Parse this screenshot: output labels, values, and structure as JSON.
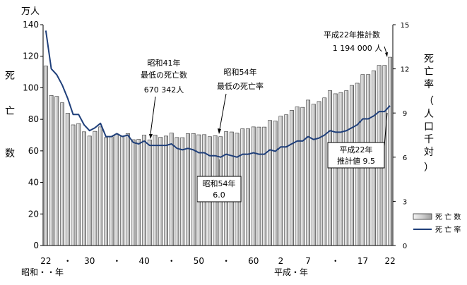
{
  "chart_data": {
    "type": "bar+line",
    "left_axis": {
      "unit": "万人",
      "label": [
        "死",
        "亡",
        "数"
      ],
      "ylim": [
        0,
        140
      ],
      "ticks": [
        "0",
        "20",
        "40",
        "60",
        "80",
        "100",
        "120",
        "140"
      ]
    },
    "right_axis": {
      "label": [
        "死",
        "亡",
        "率",
        "（",
        "人",
        "口",
        "千",
        "対",
        "）"
      ],
      "ylim": [
        0,
        15
      ],
      "ticks": [
        "0",
        "3",
        "6",
        "9",
        "12",
        "15"
      ]
    },
    "x_tick_labels": [
      "22",
      "・",
      "30",
      "・",
      "40",
      "・",
      "50",
      "・",
      "60",
      "2",
      "7",
      "・",
      "17",
      "22"
    ],
    "x_tick_years": [
      1947,
      1951,
      1955,
      1960,
      1965,
      1970,
      1975,
      1980,
      1985,
      1990,
      1995,
      2000,
      2005,
      2010
    ],
    "era_labels": {
      "showa": "昭和・・年",
      "heisei": "平成・年"
    },
    "years": [
      1947,
      1948,
      1949,
      1950,
      1951,
      1952,
      1953,
      1954,
      1955,
      1956,
      1957,
      1958,
      1959,
      1960,
      1961,
      1962,
      1963,
      1964,
      1965,
      1966,
      1967,
      1968,
      1969,
      1970,
      1971,
      1972,
      1973,
      1974,
      1975,
      1976,
      1977,
      1978,
      1979,
      1980,
      1981,
      1982,
      1983,
      1984,
      1985,
      1986,
      1987,
      1988,
      1989,
      1990,
      1991,
      1992,
      1993,
      1994,
      1995,
      1996,
      1997,
      1998,
      1999,
      2000,
      2001,
      2002,
      2003,
      2004,
      2005,
      2006,
      2007,
      2008,
      2009,
      2010
    ],
    "series": [
      {
        "name": "死 亡 数",
        "axis": "left",
        "values": [
          113.8,
          95.1,
          94.5,
          90.5,
          83.9,
          76.5,
          77.3,
          72.1,
          69.4,
          72.4,
          75.2,
          68.4,
          69.0,
          70.7,
          69.5,
          71.0,
          67.1,
          67.3,
          70.0,
          67.0,
          70.0,
          68.6,
          69.4,
          71.3,
          68.5,
          68.4,
          70.9,
          71.0,
          70.2,
          70.3,
          69.0,
          69.6,
          69.0,
          72.2,
          72.0,
          71.2,
          74.0,
          74.0,
          75.2,
          75.1,
          75.1,
          79.3,
          78.9,
          82.0,
          82.9,
          85.7,
          87.9,
          87.6,
          92.2,
          89.6,
          91.3,
          93.6,
          98.2,
          96.2,
          97.0,
          98.2,
          101.5,
          102.9,
          108.4,
          108.4,
          110.8,
          114.2,
          114.2,
          119.4
        ]
      },
      {
        "name": "死 亡 率",
        "axis": "right",
        "values": [
          14.6,
          12.0,
          11.6,
          10.9,
          10.0,
          8.9,
          8.9,
          8.2,
          7.8,
          8.0,
          8.3,
          7.4,
          7.4,
          7.6,
          7.4,
          7.5,
          7.0,
          6.9,
          7.1,
          6.8,
          6.8,
          6.8,
          6.8,
          6.9,
          6.6,
          6.5,
          6.6,
          6.5,
          6.3,
          6.3,
          6.1,
          6.1,
          6.0,
          6.2,
          6.1,
          6.0,
          6.2,
          6.2,
          6.3,
          6.2,
          6.2,
          6.5,
          6.4,
          6.7,
          6.7,
          6.9,
          7.1,
          7.1,
          7.4,
          7.2,
          7.3,
          7.5,
          7.8,
          7.7,
          7.7,
          7.8,
          8.0,
          8.2,
          8.6,
          8.6,
          8.8,
          9.1,
          9.1,
          9.5
        ]
      }
    ],
    "legend": {
      "placement": "bottom-right",
      "bar": "死 亡 数",
      "line": "死 亡 率"
    },
    "annotations": [
      {
        "lines": [
          "昭和41年",
          "最低の死亡数",
          "670 342人"
        ],
        "target_year": 1966
      },
      {
        "lines": [
          "昭和54年",
          "最低の死亡率"
        ],
        "target_year": 1979
      },
      {
        "lines": [
          "平成22年推計数",
          "1 194 000 人"
        ],
        "target_year": 2010
      },
      {
        "lines": [
          "昭和54年",
          "6.0"
        ],
        "target_year": 1979,
        "boxed": true
      },
      {
        "lines": [
          "平成22年",
          "推計値   9.5"
        ],
        "target_year": 2010,
        "boxed": true
      }
    ],
    "colors": {
      "bar_fill": "#d9d9d9",
      "bar_stroke": "#333333",
      "line": "#1f3f7a",
      "axis": "#000000"
    }
  }
}
